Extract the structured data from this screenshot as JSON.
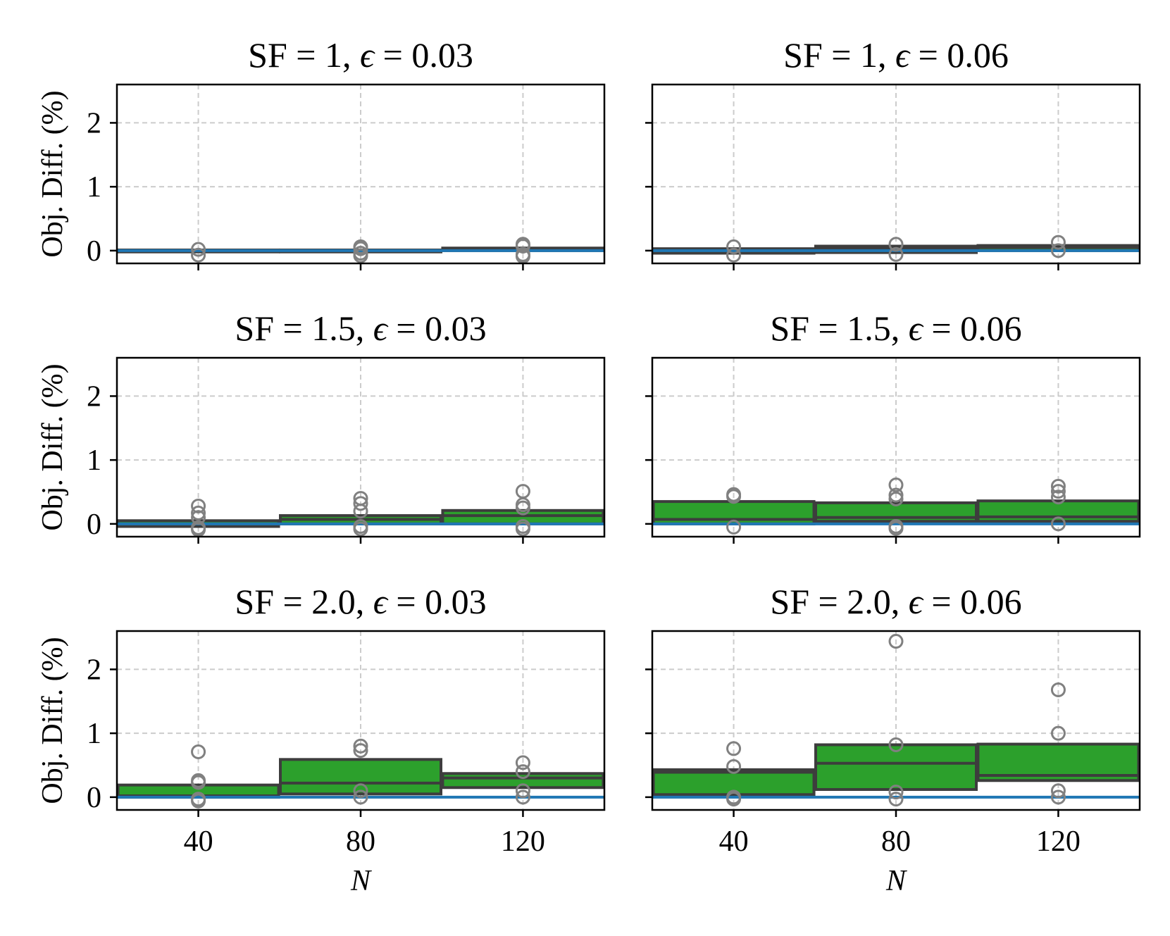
{
  "figure": {
    "y_axis_label": "Obj. Diff. (%)",
    "x_axis_label": "N",
    "y_ticks": [
      0,
      1,
      2
    ],
    "x_ticks": [
      "40",
      "80",
      "120"
    ]
  },
  "colors": {
    "box_fill": "#2ca02c",
    "box_edge": "#3d3d3d",
    "baseline": "#1f77b4",
    "outlier": "#808080",
    "grid": "#cccccc",
    "axes": "#000000"
  },
  "chart_data": [
    {
      "type": "box",
      "title_prefix": "SF = 1, ",
      "title_eps": "ϵ",
      "title_suffix": " = 0.03",
      "categories": [
        "40",
        "80",
        "120"
      ],
      "ylim": [
        -0.2,
        2.6
      ],
      "baseline_y": 0,
      "grid": true,
      "xlabel": "",
      "ylabel": "Obj. Diff. (%)",
      "boxes": [
        {
          "category": "40",
          "q1": -0.02,
          "median": -0.01,
          "q3": 0.01,
          "outliers": [
            0.02,
            -0.07
          ]
        },
        {
          "category": "80",
          "q1": -0.02,
          "median": -0.01,
          "q3": 0.01,
          "outliers": [
            0.06,
            0.03,
            -0.04,
            -0.08
          ]
        },
        {
          "category": "120",
          "q1": 0.0,
          "median": 0.02,
          "q3": 0.04,
          "outliers": [
            0.1,
            0.07,
            -0.06,
            -0.09
          ]
        }
      ]
    },
    {
      "type": "box",
      "title_prefix": "SF = 1, ",
      "title_eps": "ϵ",
      "title_suffix": " = 0.06",
      "categories": [
        "40",
        "80",
        "120"
      ],
      "ylim": [
        -0.2,
        2.6
      ],
      "baseline_y": 0,
      "grid": true,
      "xlabel": "",
      "ylabel": "",
      "boxes": [
        {
          "category": "40",
          "q1": -0.04,
          "median": -0.01,
          "q3": 0.03,
          "outliers": [
            0.06,
            -0.07
          ]
        },
        {
          "category": "80",
          "q1": -0.03,
          "median": 0.03,
          "q3": 0.07,
          "outliers": [
            0.1,
            -0.06
          ]
        },
        {
          "category": "120",
          "q1": 0.0,
          "median": 0.05,
          "q3": 0.08,
          "outliers": [
            0.13,
            0.0
          ]
        }
      ]
    },
    {
      "type": "box",
      "title_prefix": "SF = 1.5, ",
      "title_eps": "ϵ",
      "title_suffix": " = 0.03",
      "categories": [
        "40",
        "80",
        "120"
      ],
      "ylim": [
        -0.2,
        2.6
      ],
      "baseline_y": 0,
      "grid": true,
      "xlabel": "",
      "ylabel": "Obj. Diff. (%)",
      "boxes": [
        {
          "category": "40",
          "q1": -0.04,
          "median": -0.01,
          "q3": 0.05,
          "outliers": [
            0.28,
            0.17,
            0.1,
            -0.06,
            -0.09
          ]
        },
        {
          "category": "80",
          "q1": 0.0,
          "median": 0.07,
          "q3": 0.13,
          "outliers": [
            0.4,
            0.32,
            0.2,
            -0.04,
            -0.08
          ]
        },
        {
          "category": "120",
          "q1": 0.0,
          "median": 0.13,
          "q3": 0.21,
          "outliers": [
            0.51,
            0.3,
            0.25,
            -0.04,
            -0.08
          ]
        }
      ]
    },
    {
      "type": "box",
      "title_prefix": "SF = 1.5, ",
      "title_eps": "ϵ",
      "title_suffix": " = 0.06",
      "categories": [
        "40",
        "80",
        "120"
      ],
      "ylim": [
        -0.2,
        2.6
      ],
      "baseline_y": 0,
      "grid": true,
      "xlabel": "",
      "ylabel": "",
      "boxes": [
        {
          "category": "40",
          "q1": 0.0,
          "median": 0.07,
          "q3": 0.35,
          "outliers": [
            0.46,
            0.43,
            -0.05
          ]
        },
        {
          "category": "80",
          "q1": 0.04,
          "median": 0.1,
          "q3": 0.33,
          "outliers": [
            0.61,
            0.45,
            0.39,
            -0.04,
            -0.07
          ]
        },
        {
          "category": "120",
          "q1": 0.04,
          "median": 0.11,
          "q3": 0.36,
          "outliers": [
            0.59,
            0.51,
            0.42,
            0.0
          ]
        }
      ]
    },
    {
      "type": "box",
      "title_prefix": "SF = 2.0, ",
      "title_eps": "ϵ",
      "title_suffix": " = 0.03",
      "categories": [
        "40",
        "80",
        "120"
      ],
      "ylim": [
        -0.2,
        2.6
      ],
      "baseline_y": 0,
      "grid": true,
      "xlabel": "N",
      "ylabel": "Obj. Diff. (%)",
      "boxes": [
        {
          "category": "40",
          "q1": 0.0,
          "median": 0.02,
          "q3": 0.19,
          "outliers": [
            0.71,
            0.26,
            0.23,
            -0.03,
            -0.06
          ]
        },
        {
          "category": "80",
          "q1": 0.05,
          "median": 0.22,
          "q3": 0.59,
          "outliers": [
            0.8,
            0.73,
            0.1,
            0.0
          ]
        },
        {
          "category": "120",
          "q1": 0.15,
          "median": 0.3,
          "q3": 0.37,
          "outliers": [
            0.54,
            0.4,
            0.1,
            0.0
          ]
        }
      ]
    },
    {
      "type": "box",
      "title_prefix": "SF = 2.0, ",
      "title_eps": "ϵ",
      "title_suffix": " = 0.06",
      "categories": [
        "40",
        "80",
        "120"
      ],
      "ylim": [
        -0.2,
        2.6
      ],
      "baseline_y": 0,
      "grid": true,
      "xlabel": "N",
      "ylabel": "",
      "boxes": [
        {
          "category": "40",
          "q1": 0.04,
          "median": 0.39,
          "q3": 0.43,
          "outliers": [
            0.76,
            0.48,
            0.0,
            -0.03
          ]
        },
        {
          "category": "80",
          "q1": 0.12,
          "median": 0.53,
          "q3": 0.82,
          "outliers": [
            2.44,
            0.82,
            0.08,
            -0.03
          ]
        },
        {
          "category": "120",
          "q1": 0.26,
          "median": 0.34,
          "q3": 0.83,
          "outliers": [
            1.68,
            1.0,
            0.1,
            0.0
          ]
        }
      ]
    }
  ]
}
